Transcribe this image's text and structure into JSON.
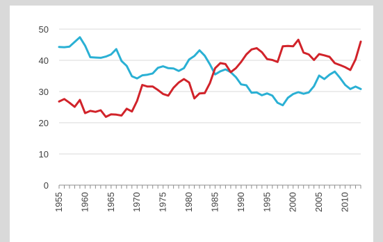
{
  "chart_data": {
    "type": "line",
    "title": "",
    "xlabel": "",
    "ylabel": "",
    "xlim": [
      1955,
      2013
    ],
    "ylim": [
      0,
      50
    ],
    "y_ticks": [
      0,
      10,
      20,
      30,
      40,
      50
    ],
    "x_ticks": [
      1955,
      1960,
      1965,
      1970,
      1975,
      1980,
      1985,
      1990,
      1995,
      2000,
      2005,
      2010
    ],
    "x_tick_labels": [
      "1955",
      "1960",
      "1965",
      "1970",
      "1975",
      "1980",
      "1985",
      "1990",
      "1995",
      "2000",
      "2005",
      "2010"
    ],
    "y_tick_labels": [
      "0",
      "10",
      "20",
      "30",
      "40",
      "50"
    ],
    "grid": "horizontal",
    "legend": "none",
    "x": [
      1955,
      1956,
      1957,
      1958,
      1959,
      1960,
      1961,
      1962,
      1963,
      1964,
      1965,
      1966,
      1967,
      1968,
      1969,
      1970,
      1971,
      1972,
      1973,
      1974,
      1975,
      1976,
      1977,
      1978,
      1979,
      1980,
      1981,
      1982,
      1983,
      1984,
      1985,
      1986,
      1987,
      1988,
      1989,
      1990,
      1991,
      1992,
      1993,
      1994,
      1995,
      1996,
      1997,
      1998,
      1999,
      2000,
      2001,
      2002,
      2003,
      2004,
      2005,
      2006,
      2007,
      2008,
      2009,
      2010,
      2011,
      2012,
      2013
    ],
    "series": [
      {
        "color": "#2ab0d4",
        "values": [
          44.3,
          44.2,
          44.4,
          45.9,
          47.4,
          44.7,
          41.0,
          40.9,
          40.8,
          41.2,
          41.9,
          43.6,
          39.8,
          38.2,
          34.9,
          34.2,
          35.2,
          35.4,
          35.8,
          37.6,
          38.1,
          37.5,
          37.4,
          36.6,
          37.5,
          40.3,
          41.4,
          43.2,
          41.5,
          38.7,
          35.5,
          36.5,
          37.1,
          36.2,
          34.6,
          32.3,
          32.0,
          29.6,
          29.7,
          28.8,
          29.4,
          28.7,
          26.4,
          25.6,
          28.0,
          29.2,
          29.8,
          29.3,
          29.7,
          31.7,
          35.1,
          34.0,
          35.4,
          36.4,
          34.4,
          32.1,
          30.8,
          31.6,
          30.8
        ]
      },
      {
        "color": "#d1232a",
        "values": [
          26.8,
          27.6,
          26.4,
          25.1,
          27.3,
          23.1,
          23.8,
          23.5,
          24.0,
          21.9,
          22.7,
          22.6,
          22.3,
          24.5,
          23.6,
          27.0,
          32.1,
          31.6,
          31.6,
          30.5,
          29.2,
          28.7,
          31.2,
          32.9,
          34.0,
          32.9,
          27.8,
          29.4,
          29.5,
          32.7,
          37.5,
          39.1,
          38.8,
          36.2,
          37.5,
          39.5,
          41.9,
          43.5,
          43.9,
          42.6,
          40.4,
          40.1,
          39.5,
          44.5,
          44.6,
          44.5,
          46.6,
          42.5,
          41.9,
          40.1,
          42.0,
          41.6,
          41.1,
          39.1,
          38.5,
          37.8,
          36.9,
          40.3,
          46.0
        ]
      }
    ]
  }
}
